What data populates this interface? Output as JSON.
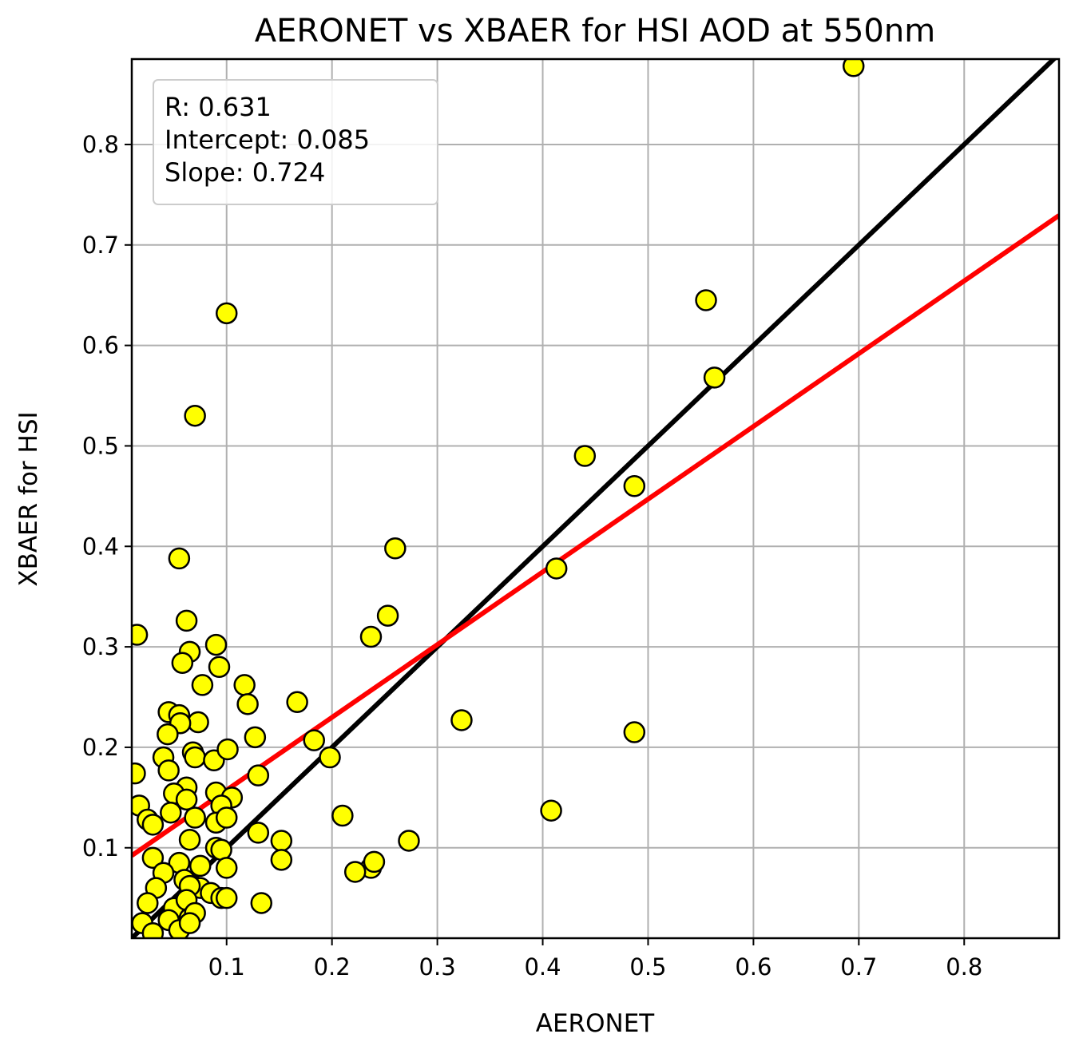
{
  "chart_data": {
    "type": "scatter",
    "title": "AERONET vs XBAER for HSI AOD at 550nm",
    "xlabel": "AERONET",
    "ylabel": "XBAER for HSI",
    "xlim": [
      0.01,
      0.89
    ],
    "ylim": [
      0.01,
      0.885
    ],
    "xticks": [
      "0.1",
      "0.2",
      "0.3",
      "0.4",
      "0.5",
      "0.6",
      "0.7",
      "0.8"
    ],
    "yticks": [
      "0.1",
      "0.2",
      "0.3",
      "0.4",
      "0.5",
      "0.6",
      "0.7",
      "0.8"
    ],
    "grid": true,
    "stats_box": {
      "position": "top-left",
      "lines": [
        "R: 0.631",
        "Intercept: 0.085",
        "Slope: 0.724"
      ]
    },
    "lines": [
      {
        "name": "1:1",
        "color": "#000000",
        "intercept": 0.0,
        "slope": 1.0
      },
      {
        "name": "fit",
        "color": "#ff0000",
        "intercept": 0.085,
        "slope": 0.724
      }
    ],
    "marker": {
      "fill": "#ffff00",
      "edge": "#000000"
    },
    "points": [
      [
        0.695,
        0.878
      ],
      [
        0.555,
        0.645
      ],
      [
        0.563,
        0.568
      ],
      [
        0.1,
        0.632
      ],
      [
        0.07,
        0.53
      ],
      [
        0.44,
        0.49
      ],
      [
        0.487,
        0.46
      ],
      [
        0.26,
        0.398
      ],
      [
        0.413,
        0.378
      ],
      [
        0.055,
        0.388
      ],
      [
        0.253,
        0.331
      ],
      [
        0.237,
        0.31
      ],
      [
        0.062,
        0.326
      ],
      [
        0.015,
        0.312
      ],
      [
        0.065,
        0.295
      ],
      [
        0.09,
        0.302
      ],
      [
        0.058,
        0.284
      ],
      [
        0.093,
        0.28
      ],
      [
        0.077,
        0.262
      ],
      [
        0.117,
        0.262
      ],
      [
        0.12,
        0.243
      ],
      [
        0.167,
        0.245
      ],
      [
        0.045,
        0.235
      ],
      [
        0.055,
        0.232
      ],
      [
        0.073,
        0.225
      ],
      [
        0.056,
        0.224
      ],
      [
        0.323,
        0.227
      ],
      [
        0.487,
        0.215
      ],
      [
        0.044,
        0.213
      ],
      [
        0.127,
        0.21
      ],
      [
        0.183,
        0.207
      ],
      [
        0.04,
        0.19
      ],
      [
        0.068,
        0.195
      ],
      [
        0.07,
        0.19
      ],
      [
        0.088,
        0.187
      ],
      [
        0.101,
        0.198
      ],
      [
        0.198,
        0.19
      ],
      [
        0.045,
        0.177
      ],
      [
        0.013,
        0.174
      ],
      [
        0.13,
        0.172
      ],
      [
        0.062,
        0.16
      ],
      [
        0.05,
        0.154
      ],
      [
        0.062,
        0.148
      ],
      [
        0.09,
        0.155
      ],
      [
        0.105,
        0.15
      ],
      [
        0.095,
        0.142
      ],
      [
        0.017,
        0.142
      ],
      [
        0.047,
        0.135
      ],
      [
        0.025,
        0.128
      ],
      [
        0.03,
        0.123
      ],
      [
        0.07,
        0.13
      ],
      [
        0.09,
        0.125
      ],
      [
        0.1,
        0.13
      ],
      [
        0.21,
        0.132
      ],
      [
        0.408,
        0.137
      ],
      [
        0.13,
        0.115
      ],
      [
        0.065,
        0.108
      ],
      [
        0.09,
        0.1
      ],
      [
        0.095,
        0.098
      ],
      [
        0.152,
        0.107
      ],
      [
        0.273,
        0.107
      ],
      [
        0.03,
        0.09
      ],
      [
        0.055,
        0.085
      ],
      [
        0.075,
        0.082
      ],
      [
        0.1,
        0.08
      ],
      [
        0.152,
        0.088
      ],
      [
        0.237,
        0.08
      ],
      [
        0.24,
        0.086
      ],
      [
        0.222,
        0.076
      ],
      [
        0.04,
        0.075
      ],
      [
        0.06,
        0.068
      ],
      [
        0.075,
        0.06
      ],
      [
        0.085,
        0.055
      ],
      [
        0.033,
        0.06
      ],
      [
        0.065,
        0.062
      ],
      [
        0.095,
        0.05
      ],
      [
        0.1,
        0.05
      ],
      [
        0.133,
        0.045
      ],
      [
        0.025,
        0.045
      ],
      [
        0.05,
        0.04
      ],
      [
        0.062,
        0.048
      ],
      [
        0.045,
        0.028
      ],
      [
        0.065,
        0.03
      ],
      [
        0.07,
        0.035
      ],
      [
        0.02,
        0.025
      ],
      [
        0.055,
        0.018
      ],
      [
        0.03,
        0.015
      ],
      [
        0.065,
        0.025
      ]
    ]
  }
}
